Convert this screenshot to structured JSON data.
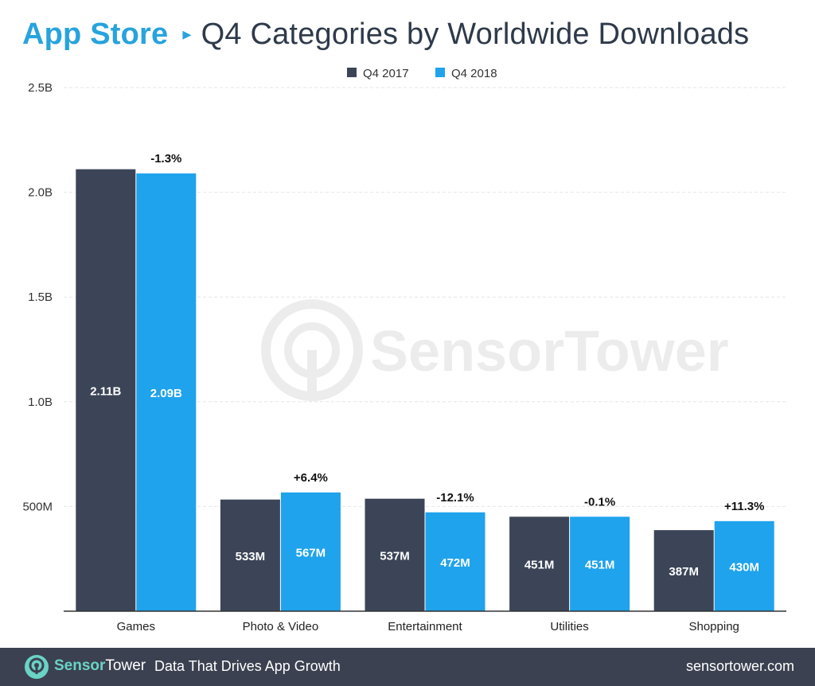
{
  "header": {
    "store": "App Store",
    "separator": "▸",
    "title": "Q4 Categories by Worldwide Downloads"
  },
  "watermark": "SensorTower",
  "colors": {
    "q4_2017": "#3b4557",
    "q4_2018": "#1fa3ec",
    "grid": "#e6e6e6",
    "axis": "#333333",
    "footer_bg": "#3b4150",
    "brand_accent": "#6ad3c6"
  },
  "chart_data": {
    "type": "bar",
    "title": "App Store ▸ Q4 Categories by Worldwide Downloads",
    "xlabel": "",
    "ylabel": "",
    "ylim": [
      0,
      2.5
    ],
    "y_ticks": [
      {
        "value": 0.5,
        "label": "500M"
      },
      {
        "value": 1.0,
        "label": "1.0B"
      },
      {
        "value": 1.5,
        "label": "1.5B"
      },
      {
        "value": 2.0,
        "label": "2.0B"
      },
      {
        "value": 2.5,
        "label": "2.5B"
      }
    ],
    "grid": true,
    "legend_position": "top-center",
    "categories": [
      "Games",
      "Photo & Video",
      "Entertainment",
      "Utilities",
      "Shopping"
    ],
    "series": [
      {
        "name": "Q4 2017",
        "values": [
          2.11,
          0.533,
          0.537,
          0.451,
          0.387
        ],
        "labels": [
          "2.11B",
          "533M",
          "537M",
          "451M",
          "387M"
        ]
      },
      {
        "name": "Q4 2018",
        "values": [
          2.09,
          0.567,
          0.472,
          0.451,
          0.43
        ],
        "labels": [
          "2.09B",
          "567M",
          "472M",
          "451M",
          "430M"
        ]
      }
    ],
    "changes": [
      "-1.3%",
      "+6.4%",
      "-12.1%",
      "-0.1%",
      "+11.3%"
    ]
  },
  "footer": {
    "brand_part1": "Sensor",
    "brand_part2": "Tower",
    "tagline": "Data That Drives App Growth",
    "site": "sensortower.com"
  }
}
